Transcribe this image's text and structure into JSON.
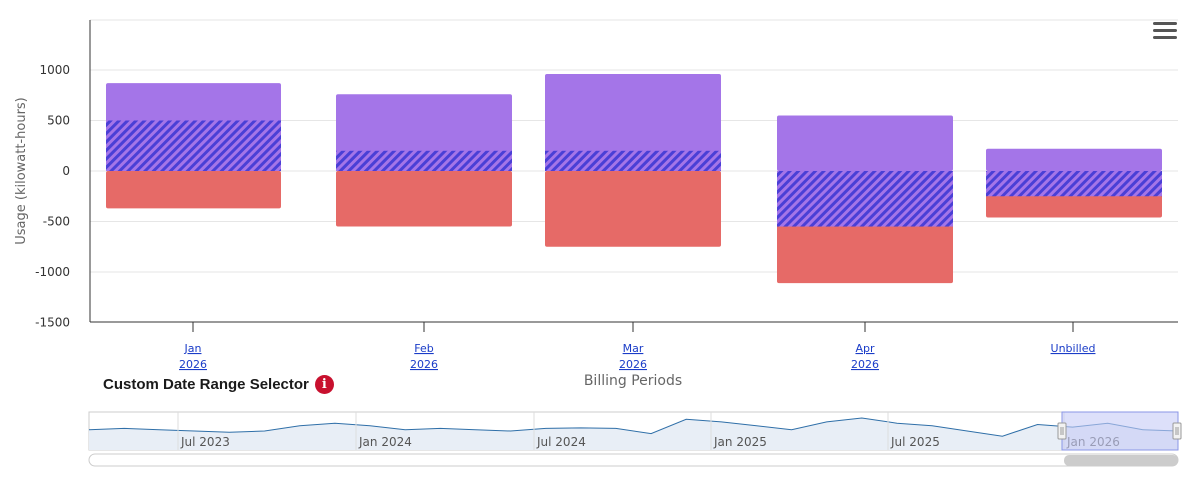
{
  "colors": {
    "consumption": "#a475e8",
    "generation": "#e66a67",
    "hatch_stripe": "#4a3fd6",
    "link": "#1a3cc8",
    "navigator_line": "#2f6fa8",
    "navigator_fill": "#e8eef6",
    "navigator_mask": "#c6ccf7",
    "info_badge": "#c8102e"
  },
  "chart_data": {
    "type": "bar",
    "stacking": "overlapping-net",
    "categories": [
      {
        "month": "Jan",
        "year": "2026"
      },
      {
        "month": "Feb",
        "year": "2026"
      },
      {
        "month": "Mar",
        "year": "2026"
      },
      {
        "month": "Apr",
        "year": "2026"
      },
      {
        "month": "Unbilled",
        "year": ""
      }
    ],
    "series": [
      {
        "color_key": "consumption",
        "values": [
          870,
          760,
          960,
          550,
          220
        ]
      },
      {
        "color_key": "generation",
        "values": [
          -370,
          -550,
          -750,
          -1110,
          -460
        ]
      },
      {
        "pattern": "hatched",
        "values": [
          500,
          200,
          200,
          -550,
          -250
        ]
      }
    ],
    "ylabel": "Usage (kilowatt-hours)",
    "xlabel": "Billing Periods",
    "ylim": [
      -1500,
      1500
    ],
    "yticks": [
      "1000",
      "500",
      "0",
      "-500",
      "-1000",
      "-1500"
    ],
    "ytick_values": [
      1000,
      500,
      0,
      -500,
      -1000,
      -1500
    ],
    "grid": true,
    "legend": "none"
  },
  "navigator": {
    "title": "Custom Date Range Selector",
    "info_icon": "i",
    "labels": [
      "Jul 2023",
      "Jan 2024",
      "Jul 2024",
      "Jan 2025",
      "Jul 2025",
      "Jan 2026"
    ],
    "series_values": [
      0.55,
      0.6,
      0.55,
      0.5,
      0.45,
      0.5,
      0.7,
      0.8,
      0.7,
      0.55,
      0.6,
      0.55,
      0.5,
      0.6,
      0.62,
      0.6,
      0.4,
      0.95,
      0.85,
      0.7,
      0.55,
      0.85,
      1.0,
      0.8,
      0.7,
      0.5,
      0.3,
      0.75,
      0.65,
      0.8,
      0.55,
      0.5
    ],
    "selected_range": "Jan 2026"
  },
  "menu": {
    "icon": "hamburger-menu-icon"
  }
}
